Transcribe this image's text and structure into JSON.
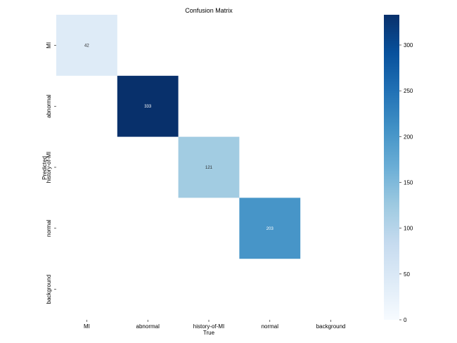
{
  "chart_data": {
    "type": "heatmap",
    "title": "Confusion Matrix",
    "xlabel": "True",
    "ylabel": "Predicted",
    "x_categories": [
      "MI",
      "abnormal",
      "history-of-MI",
      "normal",
      "background"
    ],
    "y_categories": [
      "MI",
      "abnormal",
      "history-of-MI",
      "normal",
      "background"
    ],
    "cells": [
      {
        "row": 0,
        "col": 0,
        "value": 42,
        "label": "42"
      },
      {
        "row": 1,
        "col": 1,
        "value": 333,
        "label": "333"
      },
      {
        "row": 2,
        "col": 2,
        "value": 121,
        "label": "121"
      },
      {
        "row": 3,
        "col": 3,
        "value": 203,
        "label": "203"
      }
    ],
    "colorbar": {
      "min": 0,
      "max": 333,
      "ticks": [
        0,
        50,
        100,
        150,
        200,
        250,
        300
      ],
      "colormap": "Blues"
    },
    "colors": {
      "low": "#f7fbff",
      "high": "#08306b"
    }
  }
}
